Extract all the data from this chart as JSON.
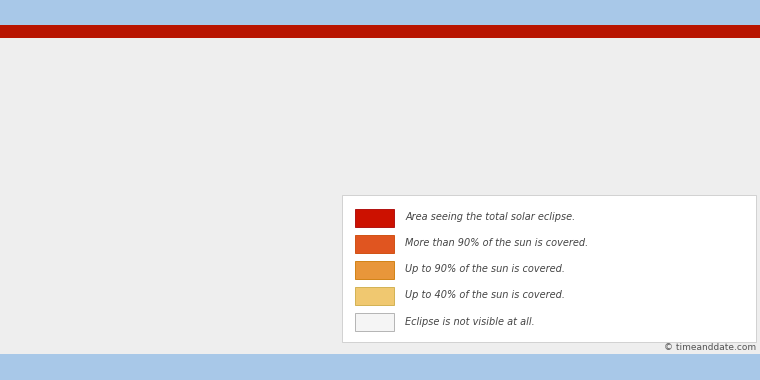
{
  "ocean_color": "#a8c8e8",
  "land_color": "#ffffff",
  "land_border_color": "#aaaaaa",
  "title_bar_color": "#b81400",
  "legend_bg": "#ffffff",
  "legend_items": [
    {
      "color": "#cc1100",
      "label": "Area seeing the total solar eclipse.",
      "border": "#aa0000"
    },
    {
      "color": "#e05520",
      "label": "More than 90% of the sun is covered.",
      "border": "#cc4400"
    },
    {
      "color": "#e8963a",
      "label": "Up to 90% of the sun is covered.",
      "border": "#cc7700"
    },
    {
      "color": "#f0c870",
      "label": "Up to 40% of the sun is covered.",
      "border": "#ccaa44"
    },
    {
      "color": "#f5f5f5",
      "label": "Eclipse is not visible at all.",
      "border": "#aaaaaa"
    }
  ],
  "credit": "© timeanddate.com",
  "figsize": [
    7.6,
    3.8
  ],
  "dpi": 100,
  "xlim": [
    -180,
    180
  ],
  "ylim": [
    -70,
    85
  ]
}
